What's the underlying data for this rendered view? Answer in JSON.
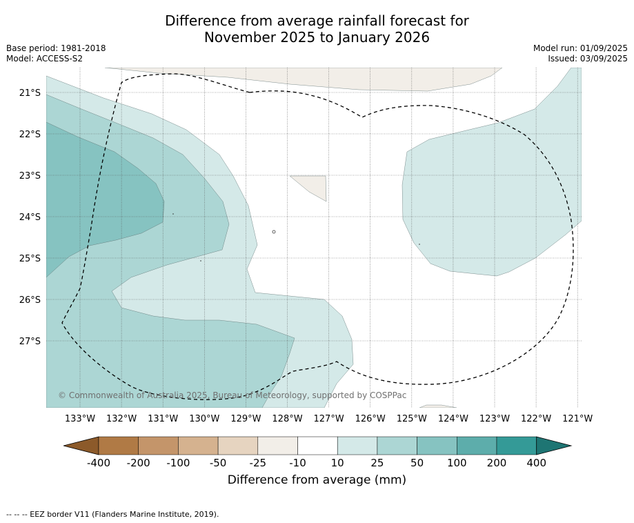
{
  "title_line1": "Difference from average rainfall forecast for",
  "title_line2": "November 2025 to January 2026",
  "base_period": "Base period: 1981-2018",
  "model": "Model: ACCESS-S2",
  "model_run": "Model run: 01/09/2025",
  "issued": "Issued: 03/09/2025",
  "lat_labels": [
    "21°S",
    "22°S",
    "23°S",
    "24°S",
    "25°S",
    "26°S",
    "27°S"
  ],
  "lon_labels": [
    "133°W",
    "132°W",
    "131°W",
    "130°W",
    "129°W",
    "128°W",
    "127°W",
    "126°W",
    "125°W",
    "124°W",
    "123°W",
    "122°W",
    "121°W"
  ],
  "copyright": "© Commonwealth of Australia 2025, Bureau of Meteorology, supported by COSPPac",
  "colorbar": {
    "ticks": [
      "-400",
      "-200",
      "-100",
      "-50",
      "-25",
      "-10",
      "10",
      "25",
      "50",
      "100",
      "200",
      "400"
    ],
    "colors": [
      "#8c5a2a",
      "#b07a45",
      "#c4956a",
      "#d5b28f",
      "#e6d4c0",
      "#f2eee8",
      "#ffffff",
      "#d4e9e8",
      "#acd6d4",
      "#86c3c1",
      "#5dadab",
      "#349a97",
      "#1e7573"
    ],
    "title": "Difference from average (mm)"
  },
  "footer": "-- -- -- EEZ border V11 (Flanders Marine Institute, 2019).",
  "map_colors": {
    "c10_25": "#d4e9e8",
    "c25_50": "#acd6d4",
    "c50_100": "#86c3c1",
    "neg10_25": "#f2eee8"
  }
}
